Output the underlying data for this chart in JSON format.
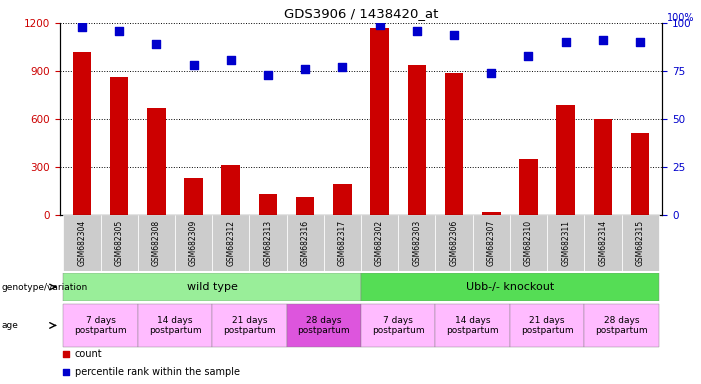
{
  "title": "GDS3906 / 1438420_at",
  "samples": [
    "GSM682304",
    "GSM682305",
    "GSM682308",
    "GSM682309",
    "GSM682312",
    "GSM682313",
    "GSM682316",
    "GSM682317",
    "GSM682302",
    "GSM682303",
    "GSM682306",
    "GSM682307",
    "GSM682310",
    "GSM682311",
    "GSM682314",
    "GSM682315"
  ],
  "counts": [
    1020,
    860,
    670,
    230,
    310,
    130,
    115,
    195,
    1170,
    940,
    890,
    20,
    350,
    690,
    600,
    510
  ],
  "percentiles": [
    98,
    96,
    89,
    78,
    81,
    73,
    76,
    77,
    99,
    96,
    94,
    74,
    83,
    90,
    91,
    90
  ],
  "ylim_left": [
    0,
    1200
  ],
  "ylim_right": [
    0,
    100
  ],
  "yticks_left": [
    0,
    300,
    600,
    900,
    1200
  ],
  "yticks_right": [
    0,
    25,
    50,
    75,
    100
  ],
  "bar_color": "#cc0000",
  "dot_color": "#0000cc",
  "tick_label_color_left": "#cc0000",
  "tick_label_color_right": "#0000cc",
  "genotype_groups": [
    {
      "label": "wild type",
      "start": 0,
      "end": 8,
      "color": "#99ee99"
    },
    {
      "label": "Ubb-/- knockout",
      "start": 8,
      "end": 16,
      "color": "#55dd55"
    }
  ],
  "age_groups": [
    {
      "label": "7 days\npostpartum",
      "start": 0,
      "end": 2,
      "color": "#ffbbff"
    },
    {
      "label": "14 days\npostpartum",
      "start": 2,
      "end": 4,
      "color": "#ffbbff"
    },
    {
      "label": "21 days\npostpartum",
      "start": 4,
      "end": 6,
      "color": "#ffbbff"
    },
    {
      "label": "28 days\npostpartum",
      "start": 6,
      "end": 8,
      "color": "#dd55dd"
    },
    {
      "label": "7 days\npostpartum",
      "start": 8,
      "end": 10,
      "color": "#ffbbff"
    },
    {
      "label": "14 days\npostpartum",
      "start": 10,
      "end": 12,
      "color": "#ffbbff"
    },
    {
      "label": "21 days\npostpartum",
      "start": 12,
      "end": 14,
      "color": "#ffbbff"
    },
    {
      "label": "28 days\npostpartum",
      "start": 14,
      "end": 16,
      "color": "#ffbbff"
    }
  ],
  "bar_width": 0.5,
  "dot_size": 30,
  "xtick_bg": "#dddddd"
}
